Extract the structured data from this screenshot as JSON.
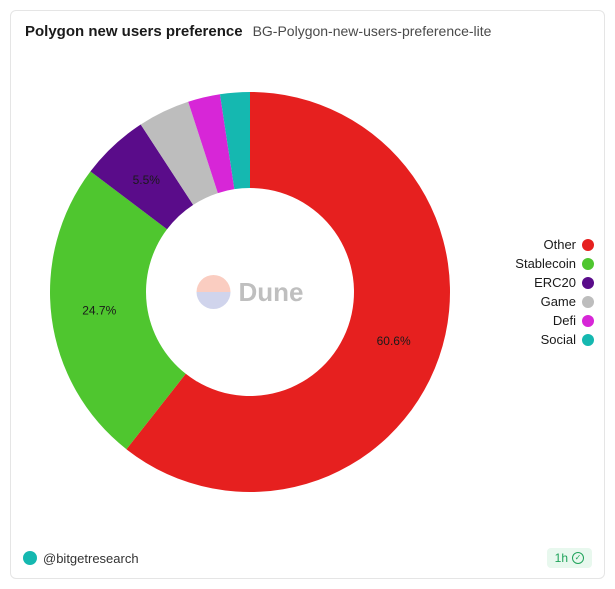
{
  "header": {
    "title": "Polygon new users preference",
    "subtitle": "BG-Polygon-new-users-preference-lite"
  },
  "chart": {
    "type": "donut",
    "inner_radius_ratio": 0.52,
    "background_color": "#ffffff",
    "label_fontsize": 12,
    "label_color": "#1a1a1a",
    "slices": [
      {
        "name": "Other",
        "value": 60.6,
        "color": "#e6201f",
        "show_label": true,
        "label": "60.6%"
      },
      {
        "name": "Stablecoin",
        "value": 24.7,
        "color": "#4fc62f",
        "show_label": true,
        "label": "24.7%"
      },
      {
        "name": "ERC20",
        "value": 5.5,
        "color": "#5a0c8a",
        "show_label": true,
        "label": "5.5%"
      },
      {
        "name": "Game",
        "value": 4.2,
        "color": "#bdbdbd",
        "show_label": false,
        "label": ""
      },
      {
        "name": "Defi",
        "value": 2.6,
        "color": "#d726d7",
        "show_label": false,
        "label": ""
      },
      {
        "name": "Social",
        "value": 2.4,
        "color": "#15b8b0",
        "show_label": false,
        "label": ""
      }
    ]
  },
  "legend": {
    "position": "right",
    "fontsize": 13,
    "items": [
      {
        "label": "Other",
        "color": "#e6201f"
      },
      {
        "label": "Stablecoin",
        "color": "#4fc62f"
      },
      {
        "label": "ERC20",
        "color": "#5a0c8a"
      },
      {
        "label": "Game",
        "color": "#bdbdbd"
      },
      {
        "label": "Defi",
        "color": "#d726d7"
      },
      {
        "label": "Social",
        "color": "#15b8b0"
      }
    ]
  },
  "watermark": {
    "text": "Dune",
    "logo_top_color": "#f2734f",
    "logo_bottom_color": "#7a86c9"
  },
  "footer": {
    "author_handle": "@bitgetresearch",
    "author_dot_color": "#15b8b0",
    "time_label": "1h",
    "badge_bg": "#e8f8ee",
    "badge_fg": "#1fa35a"
  }
}
